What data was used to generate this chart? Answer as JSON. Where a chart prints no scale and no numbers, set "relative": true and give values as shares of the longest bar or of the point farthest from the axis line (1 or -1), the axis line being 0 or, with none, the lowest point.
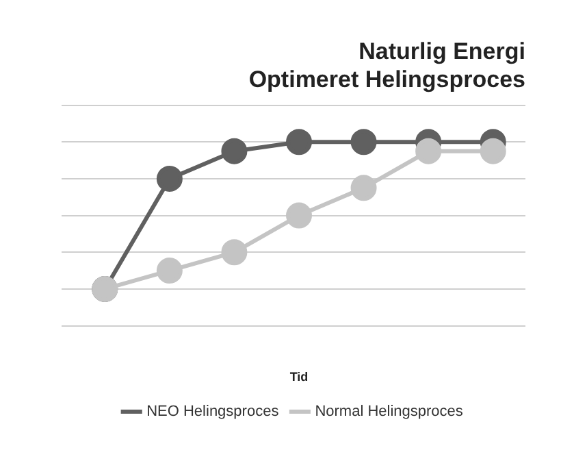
{
  "chart_data": {
    "type": "line",
    "title": [
      "Naturlig Energi",
      "Optimeret Helingsproces"
    ],
    "xlabel": "Tid",
    "relative": true,
    "categories": [
      null,
      null,
      null,
      null,
      null,
      null,
      null
    ],
    "series": [
      {
        "name": "NEO Helingsproces",
        "color": "#606060",
        "values": [
          0.2,
          0.8,
          0.95,
          1,
          1,
          1,
          1
        ]
      },
      {
        "name": "Normal Helingsproces",
        "color": "#c4c4c4",
        "values": [
          0.2,
          0.3,
          0.4,
          0.6,
          0.75,
          0.95,
          0.95
        ]
      }
    ],
    "grid": "y",
    "legend": "bottom",
    "marker": "circle",
    "line_style": "solid"
  }
}
